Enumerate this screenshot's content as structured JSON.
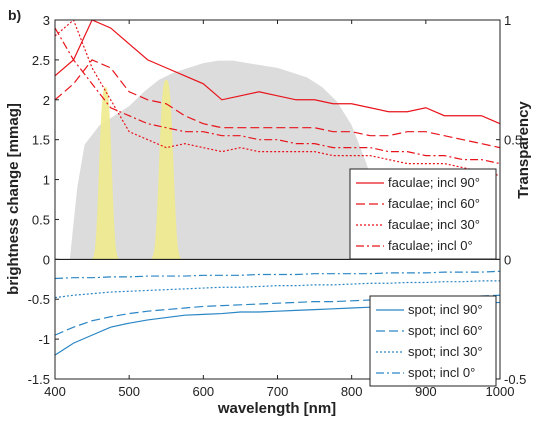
{
  "panel_label": "b)",
  "chart_data": {
    "type": "line",
    "xlabel": "wavelength [nm]",
    "ylabel_left": "brightness change [mmag]",
    "ylabel_right": "Transparency",
    "xlim": [
      400,
      1000
    ],
    "ylim_left": [
      -1.5,
      3
    ],
    "ylim_right": [
      -0.5,
      1
    ],
    "x_ticks": [
      "400",
      "500",
      "600",
      "700",
      "800",
      "900",
      "1000"
    ],
    "y_ticks_left": [
      "-1.5",
      "-1",
      "-0.5",
      "0",
      "0.5",
      "1",
      "1.5",
      "2",
      "2.5",
      "3"
    ],
    "y_ticks_right": [
      "-0.5",
      "0",
      "0.5",
      "1"
    ],
    "colors": {
      "faculae": "#e8141b",
      "spot": "#2a86c4",
      "transparency_fill": "#dcdcdc",
      "filter_fill": "#eeea8c"
    },
    "legend_faculae": [
      "faculae; incl 90°",
      "faculae; incl 60°",
      "faculae; incl 30°",
      "faculae; incl 0°"
    ],
    "legend_spot": [
      "spot; incl 90°",
      "spot; incl 60°",
      "spot; incl 30°",
      "spot; incl 0°"
    ],
    "x": [
      400,
      425,
      450,
      475,
      500,
      525,
      550,
      575,
      600,
      625,
      650,
      675,
      700,
      725,
      750,
      775,
      800,
      825,
      850,
      875,
      900,
      925,
      950,
      975,
      1000
    ],
    "series": [
      {
        "name": "faculae; incl 90°",
        "group": "faculae",
        "dash": "solid",
        "values": [
          2.3,
          2.5,
          3.0,
          2.9,
          2.7,
          2.5,
          2.4,
          2.3,
          2.2,
          2.0,
          2.05,
          2.1,
          2.05,
          2.0,
          2.0,
          1.95,
          1.95,
          1.9,
          1.85,
          1.85,
          1.9,
          1.8,
          1.8,
          1.8,
          1.7
        ]
      },
      {
        "name": "faculae; incl 60°",
        "group": "faculae",
        "dash": "dashed",
        "values": [
          2.0,
          2.2,
          2.5,
          2.4,
          2.1,
          2.0,
          1.95,
          1.8,
          1.7,
          1.65,
          1.65,
          1.65,
          1.65,
          1.65,
          1.65,
          1.6,
          1.6,
          1.55,
          1.55,
          1.6,
          1.6,
          1.55,
          1.5,
          1.45,
          1.4
        ]
      },
      {
        "name": "faculae; incl 30°",
        "group": "faculae",
        "dash": "dotted",
        "values": [
          2.8,
          3.0,
          2.4,
          2.0,
          1.6,
          1.5,
          1.4,
          1.45,
          1.4,
          1.35,
          1.4,
          1.35,
          1.35,
          1.35,
          1.35,
          1.3,
          1.3,
          1.3,
          1.25,
          1.2,
          1.2,
          1.2,
          1.15,
          1.1,
          1.05
        ]
      },
      {
        "name": "faculae; incl 0°",
        "group": "faculae",
        "dash": "dashdot",
        "values": [
          2.9,
          2.5,
          2.2,
          1.9,
          1.8,
          1.7,
          1.65,
          1.6,
          1.6,
          1.55,
          1.55,
          1.5,
          1.5,
          1.45,
          1.45,
          1.4,
          1.4,
          1.4,
          1.35,
          1.35,
          1.3,
          1.3,
          1.25,
          1.25,
          1.2
        ]
      },
      {
        "name": "spot; incl 90°",
        "group": "spot",
        "dash": "solid",
        "values": [
          -1.2,
          -1.05,
          -0.95,
          -0.85,
          -0.8,
          -0.76,
          -0.73,
          -0.7,
          -0.69,
          -0.68,
          -0.66,
          -0.66,
          -0.65,
          -0.64,
          -0.63,
          -0.62,
          -0.61,
          -0.6,
          -0.59,
          -0.58,
          -0.57,
          -0.56,
          -0.56,
          -0.55,
          -0.54
        ]
      },
      {
        "name": "spot; incl 60°",
        "group": "spot",
        "dash": "dashed",
        "values": [
          -0.95,
          -0.85,
          -0.77,
          -0.72,
          -0.68,
          -0.65,
          -0.63,
          -0.61,
          -0.59,
          -0.58,
          -0.57,
          -0.56,
          -0.55,
          -0.54,
          -0.53,
          -0.53,
          -0.52,
          -0.51,
          -0.5,
          -0.5,
          -0.49,
          -0.48,
          -0.47,
          -0.46,
          -0.45
        ]
      },
      {
        "name": "spot; incl 30°",
        "group": "spot",
        "dash": "dotted",
        "values": [
          -0.48,
          -0.45,
          -0.43,
          -0.41,
          -0.4,
          -0.39,
          -0.38,
          -0.37,
          -0.36,
          -0.35,
          -0.35,
          -0.34,
          -0.33,
          -0.33,
          -0.32,
          -0.32,
          -0.31,
          -0.3,
          -0.3,
          -0.29,
          -0.29,
          -0.28,
          -0.28,
          -0.27,
          -0.27
        ]
      },
      {
        "name": "spot; incl 0°",
        "group": "spot",
        "dash": "dashdot",
        "values": [
          -0.24,
          -0.23,
          -0.23,
          -0.22,
          -0.22,
          -0.21,
          -0.21,
          -0.21,
          -0.2,
          -0.2,
          -0.2,
          -0.19,
          -0.19,
          -0.19,
          -0.18,
          -0.18,
          -0.18,
          -0.18,
          -0.17,
          -0.17,
          -0.17,
          -0.16,
          -0.16,
          -0.16,
          -0.15
        ]
      }
    ],
    "transparency_area": {
      "x": [
        420,
        430,
        440,
        460,
        480,
        500,
        520,
        540,
        560,
        580,
        600,
        620,
        640,
        660,
        680,
        700,
        720,
        740,
        760,
        780,
        800,
        820,
        840,
        860
      ],
      "values": [
        0,
        0.3,
        0.48,
        0.56,
        0.6,
        0.64,
        0.7,
        0.75,
        0.78,
        0.8,
        0.82,
        0.83,
        0.83,
        0.82,
        0.81,
        0.8,
        0.78,
        0.76,
        0.72,
        0.66,
        0.56,
        0.4,
        0.2,
        0
      ]
    },
    "filter_peaks": [
      {
        "center": 468,
        "width": 8,
        "peak": 0.72
      },
      {
        "center": 550,
        "width": 9,
        "peak": 0.75
      }
    ]
  }
}
